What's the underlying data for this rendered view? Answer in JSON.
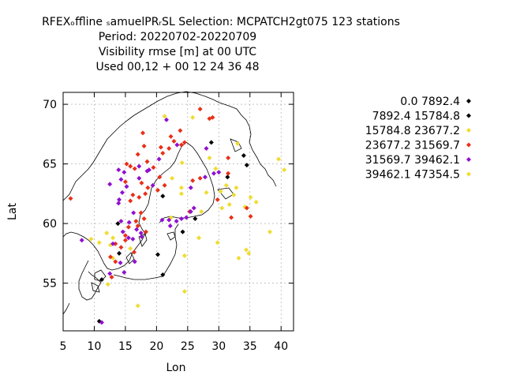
{
  "chart_data": {
    "type": "scatter",
    "title_lines": [
      "RFEXₒffline ₛamuelPRᵣSL   Selection: MCPATCH2gt075    123 stations",
      "Period: 20220702-20220709",
      "Visibility rmse [m] at  00 UTC",
      "Used  00,12  + 00 12 24 36 48"
    ],
    "xlabel": "Lon",
    "ylabel": "Lat",
    "xlim": [
      5,
      42
    ],
    "ylim": [
      51,
      71
    ],
    "xticks": [
      5,
      10,
      15,
      20,
      25,
      30,
      35,
      40
    ],
    "yticks": [
      55,
      60,
      65,
      70
    ],
    "grid": true,
    "legend_position": "right",
    "series": [
      {
        "name": "0.0 7892.4",
        "color": "#000000",
        "points": [
          [
            21.0,
            62.3
          ],
          [
            26.2,
            60.4
          ],
          [
            28.8,
            66.8
          ],
          [
            31.4,
            63.9
          ],
          [
            34.0,
            65.7
          ],
          [
            34.5,
            64.9
          ],
          [
            21.0,
            55.7
          ],
          [
            14.0,
            57.5
          ],
          [
            13.8,
            60.0
          ],
          [
            11.2,
            55.3
          ]
        ]
      },
      {
        "name": "7892.4 15784.8",
        "color": "#000000",
        "points": [
          [
            24.2,
            59.3
          ],
          [
            10.8,
            51.8
          ],
          [
            20.2,
            57.4
          ]
        ]
      },
      {
        "name": "15784.8 23677.2",
        "color": "#f0dc30",
        "points": [
          [
            21.3,
            69.0
          ],
          [
            25.8,
            68.9
          ],
          [
            24.0,
            63.0
          ],
          [
            24.0,
            62.5
          ],
          [
            22.5,
            63.8
          ],
          [
            27.2,
            61.0
          ],
          [
            28.0,
            62.6
          ],
          [
            28.5,
            65.5
          ],
          [
            29.5,
            64.6
          ],
          [
            30.3,
            62.7
          ],
          [
            31.2,
            63.2
          ],
          [
            31.7,
            61.6
          ],
          [
            32.4,
            62.4
          ],
          [
            32.8,
            63.0
          ],
          [
            33.0,
            66.7
          ],
          [
            34.2,
            61.4
          ],
          [
            35.1,
            62.2
          ],
          [
            36.0,
            61.8
          ],
          [
            39.6,
            65.4
          ],
          [
            40.5,
            64.5
          ],
          [
            30.5,
            61.3
          ],
          [
            26.8,
            58.8
          ],
          [
            29.8,
            58.4
          ],
          [
            33.2,
            57.1
          ],
          [
            34.4,
            57.8
          ],
          [
            34.8,
            57.5
          ],
          [
            38.2,
            59.3
          ],
          [
            24.5,
            57.3
          ],
          [
            24.5,
            54.3
          ],
          [
            17.0,
            53.1
          ],
          [
            12.0,
            59.2
          ],
          [
            13.0,
            58.8
          ],
          [
            12.6,
            58.2
          ],
          [
            13.0,
            57.1
          ],
          [
            24.1,
            65.1
          ],
          [
            22.3,
            60.5
          ],
          [
            12.2,
            54.9
          ]
        ]
      },
      {
        "name": "23677.2 31569.7",
        "color": "#e83018",
        "points": [
          [
            27.0,
            69.6
          ],
          [
            29.0,
            68.9
          ],
          [
            28.5,
            68.8
          ],
          [
            17.8,
            67.6
          ],
          [
            22.3,
            67.3
          ],
          [
            23.8,
            67.8
          ],
          [
            24.0,
            66.6
          ],
          [
            24.5,
            66.8
          ],
          [
            22.0,
            66.3
          ],
          [
            20.7,
            66.4
          ],
          [
            21.0,
            65.9
          ],
          [
            18.0,
            66.5
          ],
          [
            17.0,
            65.8
          ],
          [
            15.2,
            65.0
          ],
          [
            16.5,
            64.6
          ],
          [
            15.0,
            63.5
          ],
          [
            16.2,
            62.4
          ],
          [
            15.8,
            61.9
          ],
          [
            17.2,
            62.2
          ],
          [
            17.6,
            63.4
          ],
          [
            18.6,
            63.0
          ],
          [
            18.2,
            62.5
          ],
          [
            18.5,
            65.2
          ],
          [
            19.5,
            64.7
          ],
          [
            20.5,
            63.9
          ],
          [
            21.3,
            63.2
          ],
          [
            20.2,
            62.8
          ],
          [
            17.5,
            60.9
          ],
          [
            18.0,
            60.4
          ],
          [
            16.7,
            60.2
          ],
          [
            17.0,
            59.8
          ],
          [
            15.5,
            59.7
          ],
          [
            15.0,
            59.0
          ],
          [
            15.0,
            58.6
          ],
          [
            14.3,
            58.0
          ],
          [
            13.4,
            58.3
          ],
          [
            12.6,
            57.2
          ],
          [
            13.4,
            56.8
          ],
          [
            16.4,
            57.6
          ],
          [
            18.3,
            59.3
          ],
          [
            25.8,
            63.6
          ],
          [
            27.0,
            63.8
          ],
          [
            29.8,
            62.0
          ],
          [
            31.5,
            64.2
          ],
          [
            31.5,
            65.5
          ],
          [
            32.0,
            60.5
          ],
          [
            34.5,
            61.3
          ],
          [
            35.1,
            60.6
          ],
          [
            25.3,
            61.0
          ],
          [
            6.2,
            62.1
          ],
          [
            12.8,
            55.5
          ],
          [
            22.8,
            66.9
          ],
          [
            15.8,
            64.8
          ]
        ]
      },
      {
        "name": "31569.7 39462.1",
        "color": "#9010d0",
        "points": [
          [
            21.6,
            68.7
          ],
          [
            23.3,
            66.6
          ],
          [
            20.4,
            65.4
          ],
          [
            14.3,
            63.7
          ],
          [
            14.0,
            62.0
          ],
          [
            13.9,
            61.7
          ],
          [
            14.5,
            62.6
          ],
          [
            15.2,
            63.1
          ],
          [
            18.5,
            64.4
          ],
          [
            17.2,
            64.8
          ],
          [
            12.5,
            63.3
          ],
          [
            13.9,
            64.5
          ],
          [
            14.8,
            64.3
          ],
          [
            19.4,
            63.2
          ],
          [
            17.2,
            63.8
          ],
          [
            16.3,
            60.9
          ],
          [
            14.3,
            60.2
          ],
          [
            15.6,
            60.1
          ],
          [
            16.8,
            59.5
          ],
          [
            17.5,
            59.2
          ],
          [
            14.6,
            59.3
          ],
          [
            15.5,
            58.8
          ],
          [
            16.2,
            58.7
          ],
          [
            17.6,
            58.9
          ],
          [
            13.0,
            58.3
          ],
          [
            14.2,
            56.7
          ],
          [
            16.5,
            56.8
          ],
          [
            14.8,
            55.9
          ],
          [
            12.5,
            55.8
          ],
          [
            8.0,
            58.6
          ],
          [
            11.2,
            51.7
          ],
          [
            20.9,
            60.3
          ],
          [
            22.0,
            60.3
          ],
          [
            22.2,
            59.8
          ],
          [
            23.2,
            60.2
          ],
          [
            24.0,
            60.4
          ],
          [
            24.8,
            60.5
          ],
          [
            25.5,
            61.0
          ],
          [
            26.0,
            61.3
          ],
          [
            25.5,
            63.0
          ],
          [
            27.8,
            63.9
          ],
          [
            29.2,
            64.2
          ],
          [
            30.0,
            64.3
          ],
          [
            28.0,
            66.3
          ],
          [
            18.8,
            64.5
          ]
        ]
      },
      {
        "name": "39462.1 47354.5",
        "color": "#f0dc30",
        "points": [
          [
            9.5,
            58.7
          ],
          [
            10.8,
            58.4
          ],
          [
            15.8,
            57.9
          ]
        ]
      }
    ]
  }
}
